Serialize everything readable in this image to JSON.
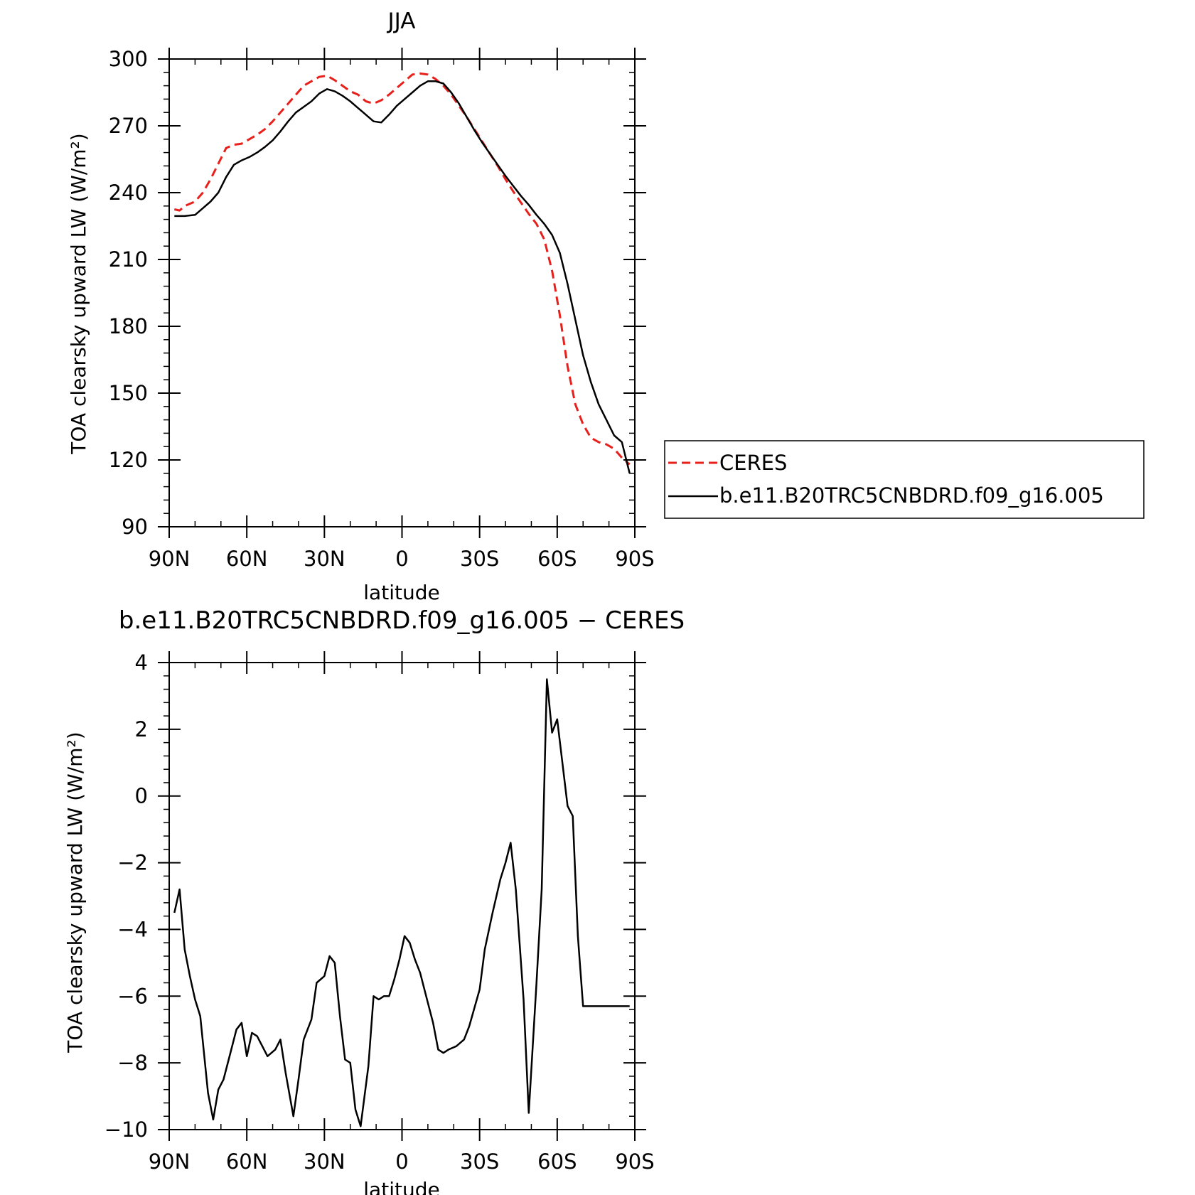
{
  "chart_data": [
    {
      "type": "line",
      "title": "JJA",
      "xlabel": "latitude",
      "ylabel": "TOA clearsky upward LW (W/m²)",
      "ylim": [
        90,
        300
      ],
      "xlim": [
        90,
        -90
      ],
      "xticks": [
        90,
        60,
        30,
        0,
        -30,
        -60,
        -90
      ],
      "xtick_labels": [
        "90N",
        "60N",
        "30N",
        "0",
        "30S",
        "60S",
        "90S"
      ],
      "yticks": [
        90,
        120,
        150,
        180,
        210,
        240,
        270,
        300
      ],
      "ytick_labels": [
        "90",
        "120",
        "150",
        "180",
        "210",
        "240",
        "270",
        "300"
      ],
      "legend": {
        "placement": "right of plot",
        "entries": [
          "CERES",
          "b.e11.B20TRC5CNBDRD.f09_g16.005"
        ]
      },
      "series": [
        {
          "name": "CERES",
          "color": "#e8201b",
          "style": "dashed",
          "x": [
            88,
            86,
            84,
            80,
            77,
            74,
            71,
            68,
            65,
            62,
            59,
            56,
            53,
            50,
            47,
            44,
            41,
            38,
            35,
            32,
            29,
            26,
            23,
            20,
            17,
            14,
            11,
            8,
            5,
            2,
            -1,
            -4,
            -7,
            -10,
            -13,
            -16,
            -19,
            -22,
            -25,
            -28,
            -31,
            -34,
            -37,
            -40,
            -43,
            -46,
            -49,
            -52,
            -55,
            -58,
            -61,
            -64,
            -67,
            -70,
            -73,
            -76,
            -79,
            -82,
            -85,
            -88
          ],
          "values": [
            232.5,
            232,
            234,
            236,
            240,
            246,
            253,
            260,
            261.5,
            262,
            264,
            266,
            268.5,
            272,
            276,
            280,
            284,
            288,
            290,
            292,
            292.5,
            290.5,
            288,
            285.5,
            284,
            281,
            280,
            281.5,
            284,
            287,
            290,
            293,
            293.5,
            293,
            291,
            288,
            284,
            279,
            274,
            268.5,
            263,
            257.5,
            252,
            246,
            240.5,
            235.5,
            230.5,
            226,
            219,
            205,
            185,
            162,
            145,
            136,
            130,
            128,
            127,
            125,
            121,
            118
          ]
        },
        {
          "name": "b.e11.B20TRC5CNBDRD.f09_g16.005",
          "color": "#000000",
          "style": "solid",
          "x": [
            88,
            86,
            84,
            80,
            77,
            74,
            71,
            68,
            65,
            62,
            59,
            56,
            53,
            50,
            47,
            44,
            41,
            38,
            35,
            32,
            29,
            26,
            23,
            20,
            17,
            14,
            11,
            8,
            5,
            2,
            -1,
            -4,
            -7,
            -10,
            -13,
            -16,
            -19,
            -22,
            -25,
            -28,
            -31,
            -34,
            -37,
            -40,
            -43,
            -46,
            -49,
            -52,
            -55,
            -58,
            -61,
            -64,
            -67,
            -70,
            -73,
            -76,
            -79,
            -82,
            -85,
            -88
          ],
          "values": [
            229.5,
            229.5,
            229.5,
            230,
            233,
            236,
            240,
            247,
            252.5,
            254.5,
            256,
            258,
            260.5,
            263.5,
            267.5,
            272,
            276,
            278.5,
            281,
            284.5,
            286.5,
            285.5,
            283.5,
            281,
            278,
            275,
            272,
            271.5,
            275,
            279,
            282,
            285,
            288,
            290,
            290,
            289,
            285,
            280,
            274,
            268,
            262.5,
            257.5,
            252.5,
            247.5,
            243,
            238.5,
            234.5,
            230,
            226,
            221,
            213,
            199,
            183,
            167,
            155,
            145,
            138,
            131,
            128,
            114
          ]
        }
      ]
    },
    {
      "type": "line",
      "title": "b.e11.B20TRC5CNBDRD.f09_g16.005 − CERES",
      "xlabel": "latitude",
      "ylabel": "TOA clearsky upward LW (W/m²)",
      "ylim": [
        -10,
        4
      ],
      "xlim": [
        90,
        -90
      ],
      "xticks": [
        90,
        60,
        30,
        0,
        -30,
        -60,
        -90
      ],
      "xtick_labels": [
        "90N",
        "60N",
        "30N",
        "0",
        "30S",
        "60S",
        "90S"
      ],
      "yticks": [
        -10,
        -8,
        -6,
        -4,
        -2,
        0,
        2,
        4
      ],
      "ytick_labels": [
        "−10",
        "−8",
        "−6",
        "−4",
        "−2",
        "0",
        "2",
        "4"
      ],
      "series": [
        {
          "color": "#000000",
          "style": "solid",
          "x": [
            88,
            86,
            84,
            82,
            80,
            78,
            75,
            73,
            71,
            69,
            67,
            64,
            62,
            60,
            58,
            56,
            54,
            52,
            49,
            47,
            45,
            42,
            40,
            38,
            35,
            33,
            30,
            28,
            26,
            24,
            22,
            20,
            18,
            16,
            13,
            11,
            9,
            7,
            5,
            3,
            1,
            -1,
            -3,
            -5,
            -7,
            -10,
            -12,
            -14,
            -16,
            -18,
            -21,
            -24,
            -26,
            -30,
            -32,
            -35,
            -38,
            -40,
            -42,
            -44,
            -47,
            -49,
            -52,
            -54,
            -56,
            -58,
            -60,
            -62,
            -64,
            -66,
            -68,
            -70,
            -72,
            -74,
            -76,
            -78,
            -80,
            -82,
            -84,
            -86,
            -88
          ],
          "values": [
            -3.5,
            -2.8,
            -4.6,
            -5.4,
            -6.1,
            -6.6,
            -8.9,
            -9.7,
            -8.8,
            -8.5,
            -7.9,
            -7.0,
            -6.8,
            -7.8,
            -7.1,
            -7.2,
            -7.5,
            -7.8,
            -7.6,
            -7.3,
            -8.3,
            -9.6,
            -8.5,
            -7.3,
            -6.7,
            -5.6,
            -5.4,
            -4.8,
            -5.0,
            -6.6,
            -7.9,
            -8.0,
            -9.4,
            -9.9,
            -8.1,
            -6.0,
            -6.1,
            -6.0,
            -6.0,
            -5.5,
            -4.9,
            -4.2,
            -4.4,
            -4.9,
            -5.3,
            -6.2,
            -6.8,
            -7.6,
            -7.7,
            -7.6,
            -7.5,
            -7.3,
            -6.9,
            -5.8,
            -4.6,
            -3.5,
            -2.5,
            -2.0,
            -1.4,
            -2.8,
            -6.1,
            -9.5,
            -5.6,
            -2.8,
            3.5,
            1.9,
            2.3,
            1.0,
            -0.3,
            -0.6,
            -4.2,
            -6.3,
            -6.3,
            -6.3,
            -6.3,
            -6.3,
            -6.3,
            -6.3,
            -6.3,
            -6.3,
            -6.3
          ]
        }
      ]
    }
  ]
}
